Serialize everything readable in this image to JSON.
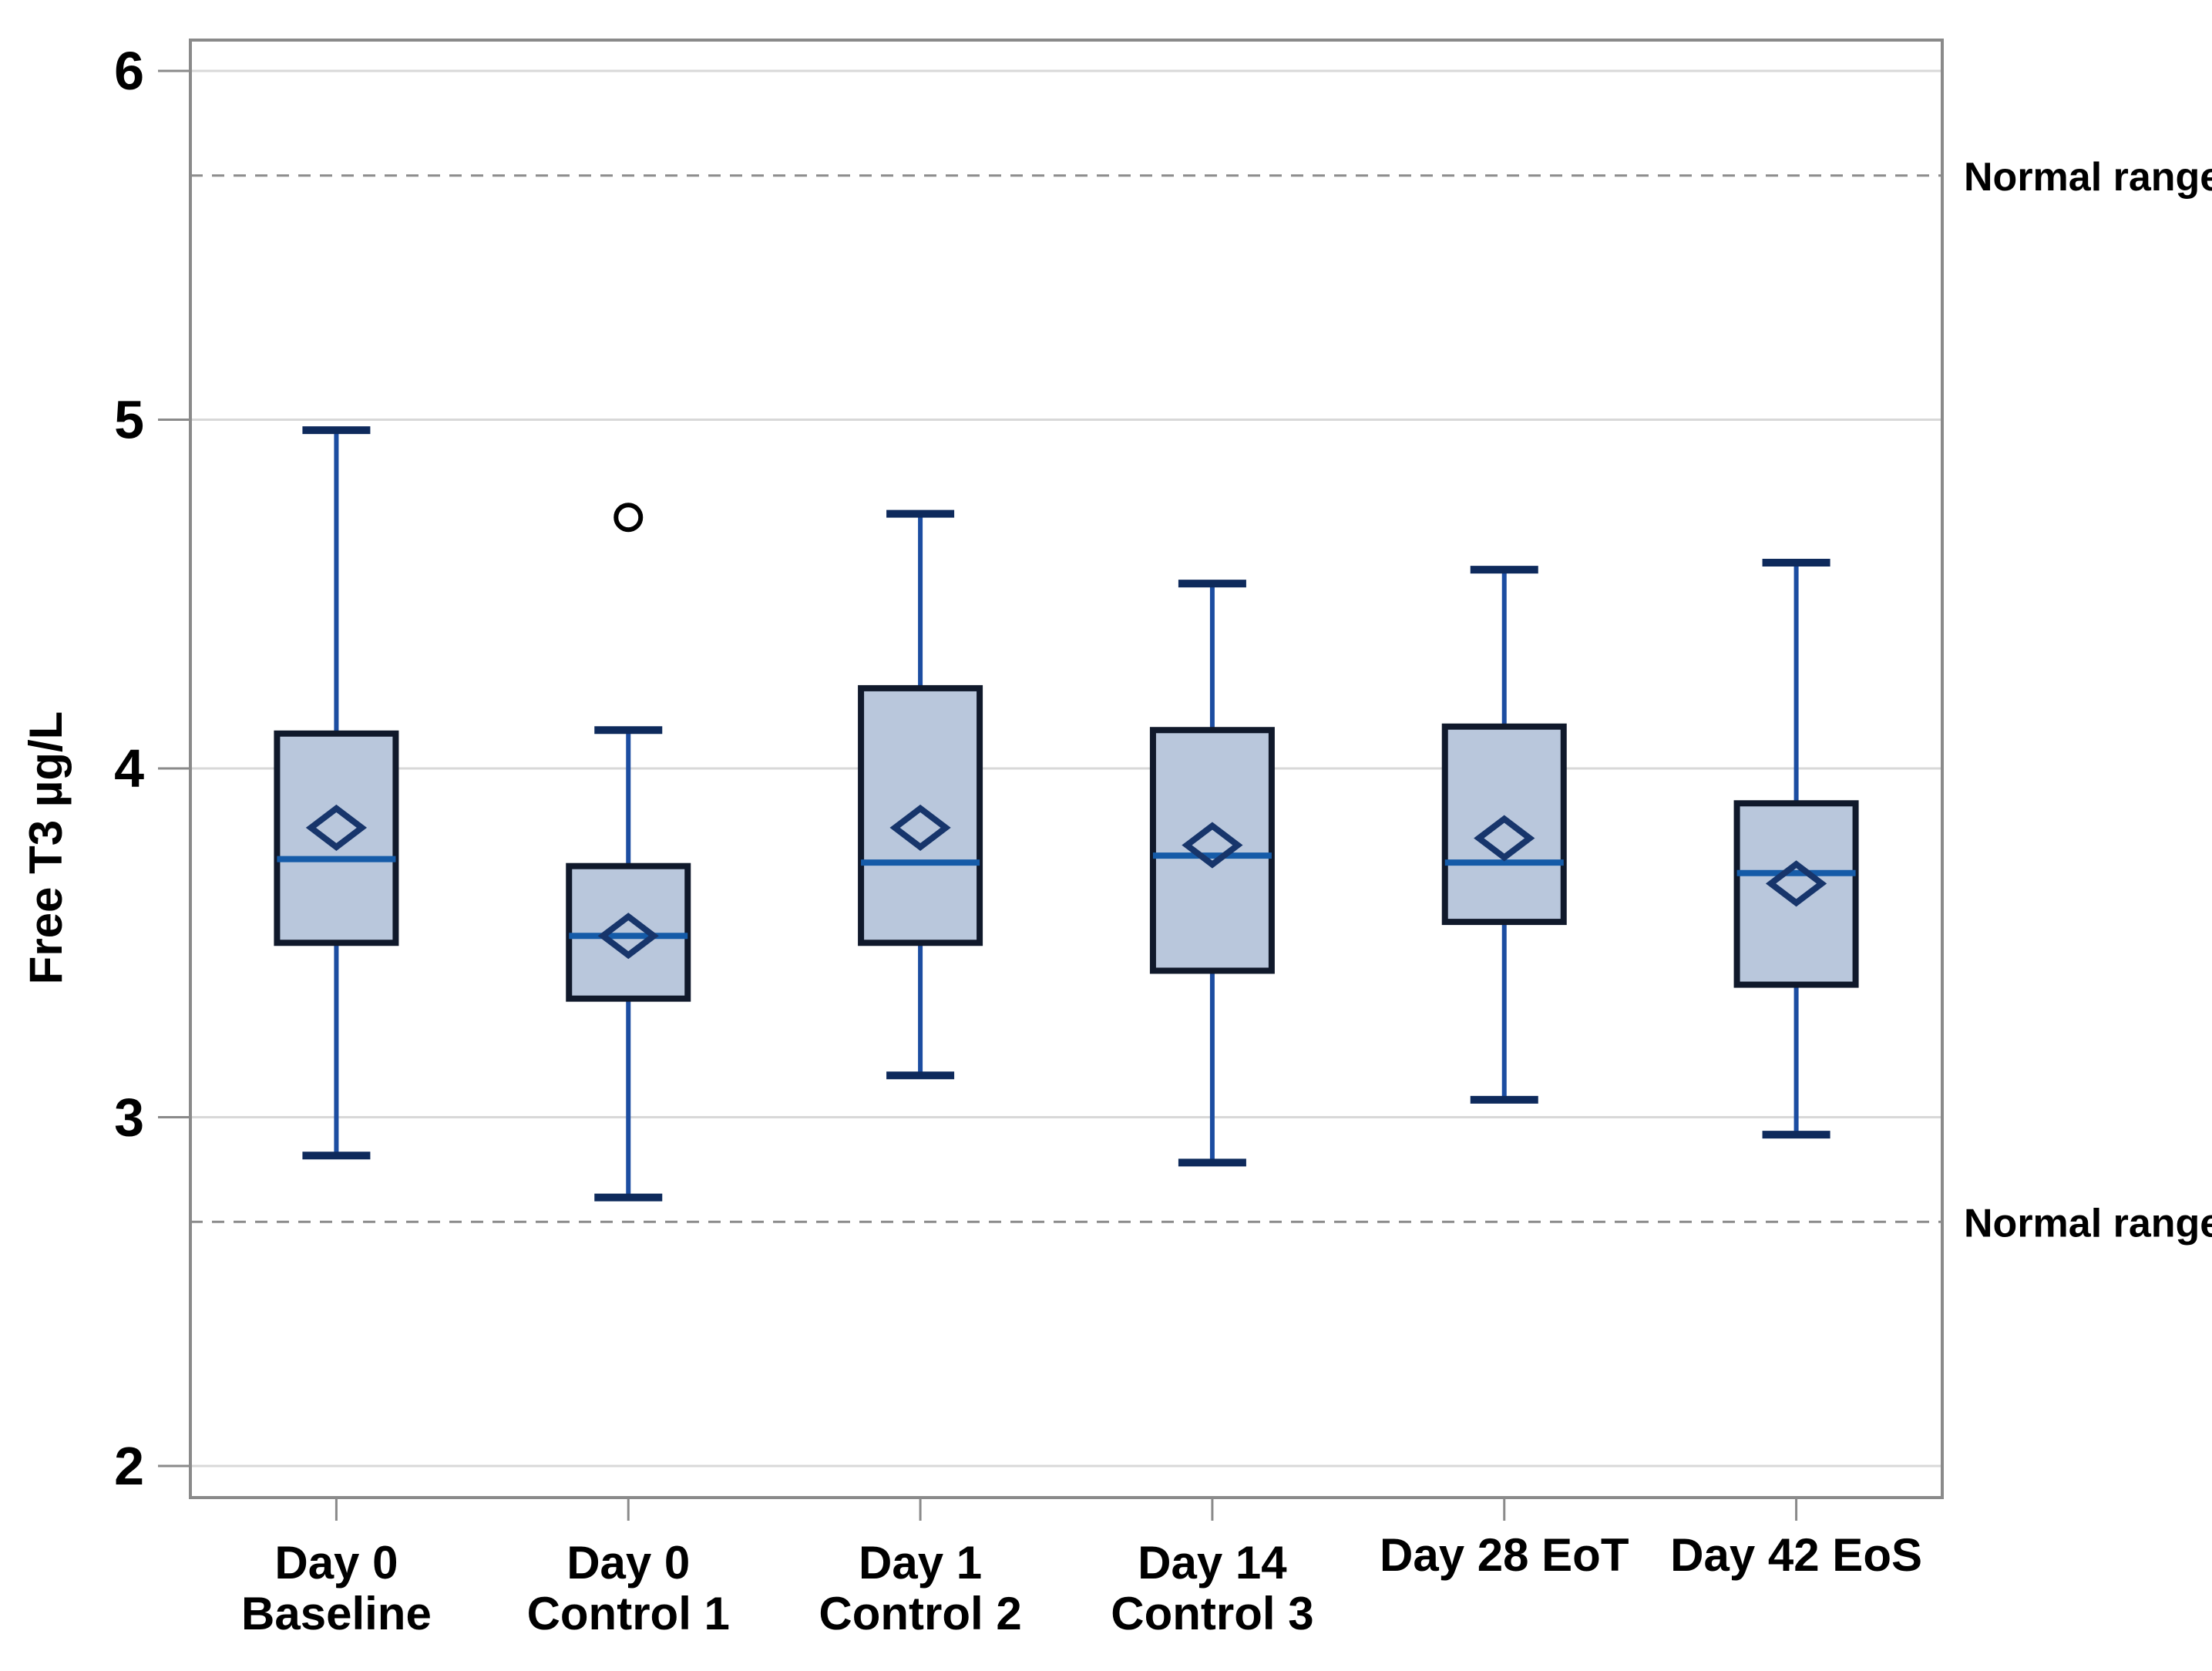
{
  "figure": {
    "background": "#ffffff",
    "description": "Box plot of Free T3 concentration over study visits with normal range reference lines"
  },
  "chart_data": {
    "type": "boxplot",
    "title": "",
    "xlabel": "",
    "ylabel": "Free T3  µg/L",
    "ylim": [
      1.91,
      6.09
    ],
    "yticks": [
      2,
      3,
      4,
      5,
      6
    ],
    "grid": "horizontal gridlines at each y tick",
    "legend_position": "none",
    "reference_lines": [
      {
        "value": 5.7,
        "label": "Normal range",
        "style": "dotted"
      },
      {
        "value": 2.7,
        "label": "Normal range",
        "style": "dotted"
      }
    ],
    "categories": [
      {
        "line1": "Day 0",
        "line2": "Baseline"
      },
      {
        "line1": "Day 0",
        "line2": "Control 1"
      },
      {
        "line1": "Day 1",
        "line2": "Control 2"
      },
      {
        "line1": "Day 14",
        "line2": "Control 3"
      },
      {
        "line1": "Day 28 EoT",
        "line2": ""
      },
      {
        "line1": "Day 42 EoS",
        "line2": ""
      }
    ],
    "series": [
      {
        "name": "Day 0 Baseline",
        "whisker_low": 2.89,
        "q1": 3.5,
        "median": 3.74,
        "mean": 3.83,
        "q3": 4.1,
        "whisker_high": 4.97,
        "outliers": []
      },
      {
        "name": "Day 0 Control 1",
        "whisker_low": 2.77,
        "q1": 3.34,
        "median": 3.52,
        "mean": 3.52,
        "q3": 3.72,
        "whisker_high": 4.11,
        "outliers": [
          4.72
        ]
      },
      {
        "name": "Day 1 Control 2",
        "whisker_low": 3.12,
        "q1": 3.5,
        "median": 3.73,
        "mean": 3.83,
        "q3": 4.23,
        "whisker_high": 4.73,
        "outliers": []
      },
      {
        "name": "Day 14 Control 3",
        "whisker_low": 2.87,
        "q1": 3.42,
        "median": 3.75,
        "mean": 3.78,
        "q3": 4.11,
        "whisker_high": 4.53,
        "outliers": []
      },
      {
        "name": "Day 28 EoT",
        "whisker_low": 3.05,
        "q1": 3.56,
        "median": 3.73,
        "mean": 3.8,
        "q3": 4.12,
        "whisker_high": 4.57,
        "outliers": []
      },
      {
        "name": "Day 42 EoS",
        "whisker_low": 2.95,
        "q1": 3.38,
        "median": 3.7,
        "mean": 3.67,
        "q3": 3.9,
        "whisker_high": 4.59,
        "outliers": []
      }
    ],
    "colors": {
      "box_fill": "#b9c7dc",
      "box_border": "#10192b",
      "whisker": "#1c4da1",
      "whisker_cap": "#0e2a5c",
      "median": "#155ba8",
      "mean_marker": "#17356b",
      "outlier": "#000000",
      "gridline": "#d8d8d8",
      "axis_frame": "#8a8a8a",
      "reference_line": "#8c8c8c",
      "text": "#000000"
    }
  }
}
